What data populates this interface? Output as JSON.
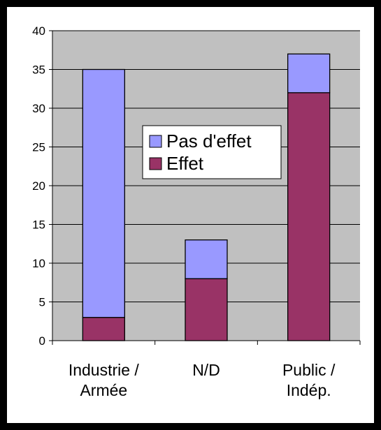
{
  "chart_data": {
    "type": "bar",
    "stacked": true,
    "categories": [
      [
        "Industrie /",
        "Armée"
      ],
      [
        "N/D"
      ],
      [
        "Public /",
        "Indép."
      ]
    ],
    "series": [
      {
        "name": "Effet",
        "values": [
          3,
          8,
          32
        ],
        "color": "#993366"
      },
      {
        "name": "Pas d'effet",
        "values": [
          32,
          5,
          5
        ],
        "color": "#9999ff"
      }
    ],
    "ylim": [
      0,
      40
    ],
    "yticks": [
      0,
      5,
      10,
      15,
      20,
      25,
      30,
      35,
      40
    ],
    "grid": true,
    "plot_background": "#c0c0c0",
    "legend_order": [
      "Pas d'effet",
      "Effet"
    ],
    "legend_position": "inside-center"
  }
}
